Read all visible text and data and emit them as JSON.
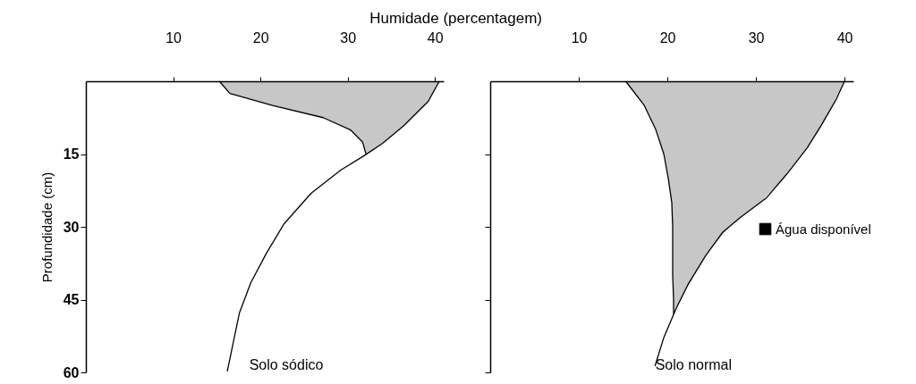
{
  "chart_data": [
    {
      "type": "line",
      "orientation": "horizontal",
      "xlabel": "Humidade (percentagem)",
      "ylabel": "Profundidade (cm)",
      "xlim": [
        0,
        41
      ],
      "ylim": [
        60,
        0
      ],
      "xticks": [
        10,
        20,
        30,
        40
      ],
      "yticks": [
        15,
        30,
        45,
        60
      ],
      "annotations": [
        "Solo sódico"
      ],
      "series": [
        {
          "color": "#000000",
          "x": [
            0,
            4.2,
            9.2,
            12.8,
            15.2,
            18.3,
            23.1,
            29.4,
            35.4,
            41.5,
            47.7,
            59.8
          ],
          "values": [
            40.5,
            39.2,
            36.4,
            34.0,
            32.0,
            29.2,
            25.8,
            22.7,
            20.7,
            18.9,
            17.6,
            16.2
          ]
        },
        {
          "color": "#000000",
          "x": [
            0,
            2.5,
            5,
            7.5,
            10,
            12.5,
            15
          ],
          "values": [
            15.3,
            16.5,
            21.4,
            27.2,
            30.3,
            31.7,
            32.1
          ],
          "lower": [
            15.3,
            16.5,
            21.4,
            27.2,
            30.3,
            31.7,
            32.1
          ],
          "upper": [
            40.5,
            39.7,
            38.8,
            37.4,
            35.9,
            34.2,
            32.1
          ]
        }
      ]
    },
    {
      "type": "line",
      "orientation": "horizontal",
      "xlim": [
        0,
        41
      ],
      "ylim": [
        60,
        0
      ],
      "xticks": [
        10,
        20,
        30,
        40
      ],
      "yticks": [
        15,
        30,
        45,
        60
      ],
      "tick_labels": "x",
      "legend": "right",
      "annotations": [
        "Solo normal"
      ],
      "series": [
        {
          "color": "#000000",
          "x": [
            0,
            3.6,
            9,
            13.7,
            19.1,
            24,
            28.1,
            31.2,
            36,
            42,
            46.8,
            52.8,
            58.7
          ],
          "values": [
            40,
            39.1,
            37.4,
            35.8,
            33.5,
            31.2,
            28.2,
            26.2,
            24.3,
            22.3,
            21.0,
            19.6,
            18.6
          ]
        },
        {
          "name": "Água disponível",
          "color": "#000000",
          "x": [
            0,
            5,
            10,
            15,
            20,
            25,
            30,
            35,
            40,
            45,
            48
          ],
          "values": [
            15.3,
            17.4,
            18.7,
            19.6,
            20.1,
            20.5,
            20.6,
            20.6,
            20.6,
            20.7,
            20.7
          ],
          "lower": [
            15.3,
            17.4,
            18.7,
            19.6,
            20.1,
            20.5,
            20.6,
            20.6,
            20.6,
            20.7,
            20.7
          ],
          "upper": [
            40,
            38.6,
            37.2,
            35.2,
            33.1,
            30.5,
            27.0,
            24.7,
            23.0,
            21.5,
            20.7
          ]
        }
      ]
    }
  ]
}
